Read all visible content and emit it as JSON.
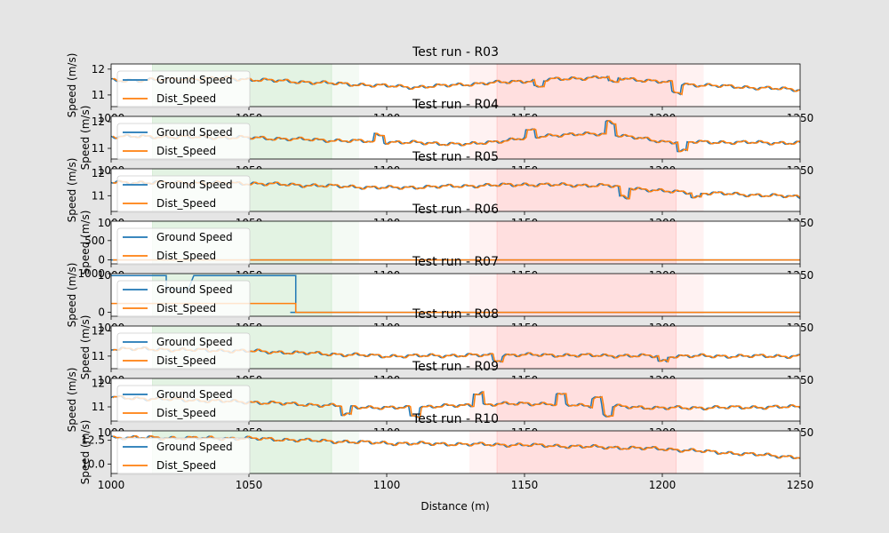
{
  "chart_data": {
    "type": "line",
    "xlabel": "Distance (m)",
    "ylabel": "Speed (m/s)",
    "xlim": [
      1000,
      1250
    ],
    "x_ticks": [
      1000,
      1050,
      1100,
      1150,
      1200,
      1250
    ],
    "x_tick_labels": [
      "1000",
      "1050",
      "1100",
      "1150",
      "1200",
      "1250"
    ],
    "legend": {
      "placement": "upper-left",
      "entries": [
        "Ground Speed",
        "Dist_Speed"
      ]
    },
    "colors": {
      "ground_speed": "#1f77b4",
      "dist_speed": "#ff7f0e",
      "green_zone": "#2ca02c",
      "red_zone": "#ff0000"
    },
    "zones": [
      {
        "type": "green-light",
        "x": [
          1015,
          1090
        ]
      },
      {
        "type": "green-dark",
        "x": [
          1015,
          1080
        ]
      },
      {
        "type": "red-light",
        "x": [
          1130,
          1215
        ]
      },
      {
        "type": "red-dark",
        "x": [
          1140,
          1205
        ]
      }
    ],
    "panels": [
      {
        "title": "Test run - R03",
        "ylim": [
          10.55,
          12.2
        ],
        "y_ticks": [
          11,
          12
        ],
        "y_tick_labels": [
          "11",
          "12"
        ],
        "base": {
          "x": [
            1000,
            1040,
            1080,
            1110,
            1160,
            1180,
            1210,
            1250
          ],
          "y": [
            11.55,
            11.65,
            11.45,
            11.3,
            11.6,
            11.7,
            11.4,
            11.2
          ]
        },
        "spikes": [
          [
            1155,
            -0.25
          ],
          [
            1182,
            -0.2
          ],
          [
            1205,
            -0.35
          ]
        ]
      },
      {
        "title": "Test run - R04",
        "ylim": [
          10.6,
          12.2
        ],
        "y_ticks": [
          11,
          12
        ],
        "y_tick_labels": [
          "11",
          "12"
        ],
        "base": {
          "x": [
            1000,
            1050,
            1080,
            1130,
            1160,
            1180,
            1200,
            1250
          ],
          "y": [
            11.45,
            11.4,
            11.3,
            11.15,
            11.5,
            11.55,
            11.25,
            11.2
          ]
        },
        "spikes": [
          [
            1097,
            0.25
          ],
          [
            1152,
            0.25
          ],
          [
            1181,
            0.45
          ],
          [
            1207,
            -0.35
          ]
        ]
      },
      {
        "title": "Test run - R05",
        "ylim": [
          10.3,
          12.2
        ],
        "y_ticks": [
          11,
          12
        ],
        "y_tick_labels": [
          "11",
          "12"
        ],
        "base": {
          "x": [
            1000,
            1050,
            1100,
            1150,
            1180,
            1200,
            1250
          ],
          "y": [
            11.6,
            11.55,
            11.35,
            11.5,
            11.45,
            11.2,
            10.95
          ]
        },
        "spikes": [
          [
            1186,
            -0.45
          ],
          [
            1212,
            -0.2
          ]
        ]
      },
      {
        "title": "Test run - R06",
        "ylim": [
          -100,
          1000
        ],
        "y_ticks": [
          0,
          500
        ],
        "y_tick_labels": [
          "0",
          "500"
        ],
        "base": {
          "x": [
            1000,
            1250
          ],
          "y": [
            0,
            0
          ]
        },
        "spikes": []
      },
      {
        "title": "Test run - R07",
        "ylim": [
          -100,
          1000
        ],
        "y_ticks": [
          0,
          1000
        ],
        "y_tick_labels": [
          "0",
          "1000"
        ],
        "step_ground": {
          "x": [
            1000,
            1020,
            1020,
            1028,
            1030,
            1067,
            1067,
            1065,
            1250
          ],
          "y": [
            950,
            950,
            600,
            600,
            950,
            950,
            0,
            0,
            0
          ]
        },
        "step_dist": {
          "x": [
            1000,
            1067,
            1067,
            1250
          ],
          "y": [
            230,
            230,
            0,
            0
          ]
        }
      },
      {
        "title": "Test run - R08",
        "ylim": [
          10.5,
          12.2
        ],
        "y_ticks": [
          11,
          12
        ],
        "y_tick_labels": [
          "11",
          "12"
        ],
        "base": {
          "x": [
            1000,
            1050,
            1100,
            1150,
            1200,
            1250
          ],
          "y": [
            11.3,
            11.2,
            11.0,
            11.05,
            11.0,
            11.0
          ]
        },
        "spikes": [
          [
            1140,
            -0.2
          ],
          [
            1200,
            -0.2
          ]
        ]
      },
      {
        "title": "Test run - R09",
        "ylim": [
          10.4,
          12.2
        ],
        "y_ticks": [
          11,
          12
        ],
        "y_tick_labels": [
          "11",
          "12"
        ],
        "base": {
          "x": [
            1000,
            1050,
            1100,
            1150,
            1200,
            1250
          ],
          "y": [
            11.4,
            11.2,
            10.95,
            11.15,
            10.95,
            11.0
          ]
        },
        "spikes": [
          [
            1085,
            -0.35
          ],
          [
            1110,
            -0.35
          ],
          [
            1133,
            0.5
          ],
          [
            1163,
            0.4
          ],
          [
            1176,
            0.35
          ],
          [
            1180,
            -0.4
          ]
        ]
      },
      {
        "title": "Test run - R10",
        "ylim": [
          9.0,
          13.5
        ],
        "y_ticks": [
          10.0,
          12.5
        ],
        "y_tick_labels": [
          "10.0",
          "12.5"
        ],
        "base": {
          "x": [
            1000,
            1050,
            1100,
            1150,
            1200,
            1250
          ],
          "y": [
            12.8,
            12.7,
            12.2,
            12.0,
            11.6,
            10.7
          ]
        },
        "spikes": []
      }
    ]
  }
}
